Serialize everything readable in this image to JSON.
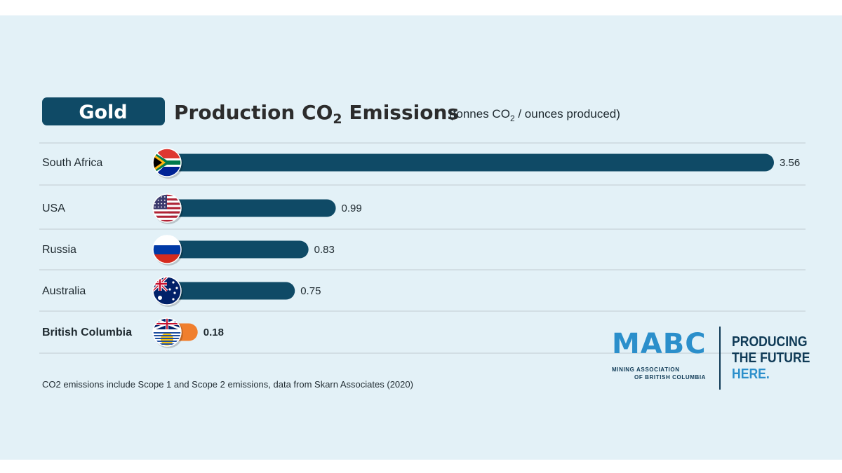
{
  "colors": {
    "background": "#e3f1f7",
    "bar": "#0f4a66",
    "highlight_bar": "#f07f2e",
    "badge": "#0f4a66",
    "logo_blue": "#2b8fcb",
    "logo_navy": "#0f3a56"
  },
  "header": {
    "badge": "Gold",
    "title_main": "Production CO",
    "title_sub": "2",
    "title_end": " Emissions",
    "unit_pre": "(tonnes CO",
    "unit_sub": "2",
    "unit_post": " / ounces produced)"
  },
  "chart_data": {
    "type": "bar",
    "orientation": "horizontal",
    "categories": [
      "South Africa",
      "USA",
      "Russia",
      "Australia",
      "British Columbia"
    ],
    "values": [
      3.56,
      0.99,
      0.83,
      0.75,
      0.18
    ],
    "value_labels": [
      "3.56",
      "0.99",
      "0.83",
      "0.75",
      "0.18"
    ],
    "flags": [
      "south-africa-flag",
      "usa-flag",
      "russia-flag",
      "australia-flag",
      "british-columbia-flag"
    ],
    "highlight_index": 4,
    "xlim": [
      0,
      3.56
    ],
    "grid": false
  },
  "footnote": "CO2 emissions include Scope 1 and Scope 2 emissions, data from Skarn Associates (2020)",
  "logo": {
    "name": "MABC",
    "sub_line1": "MINING ASSOCIATION",
    "sub_line2": "OF BRITISH COLUMBIA",
    "tagline1": "PRODUCING",
    "tagline2": "THE FUTURE",
    "tagline3": "HERE."
  }
}
